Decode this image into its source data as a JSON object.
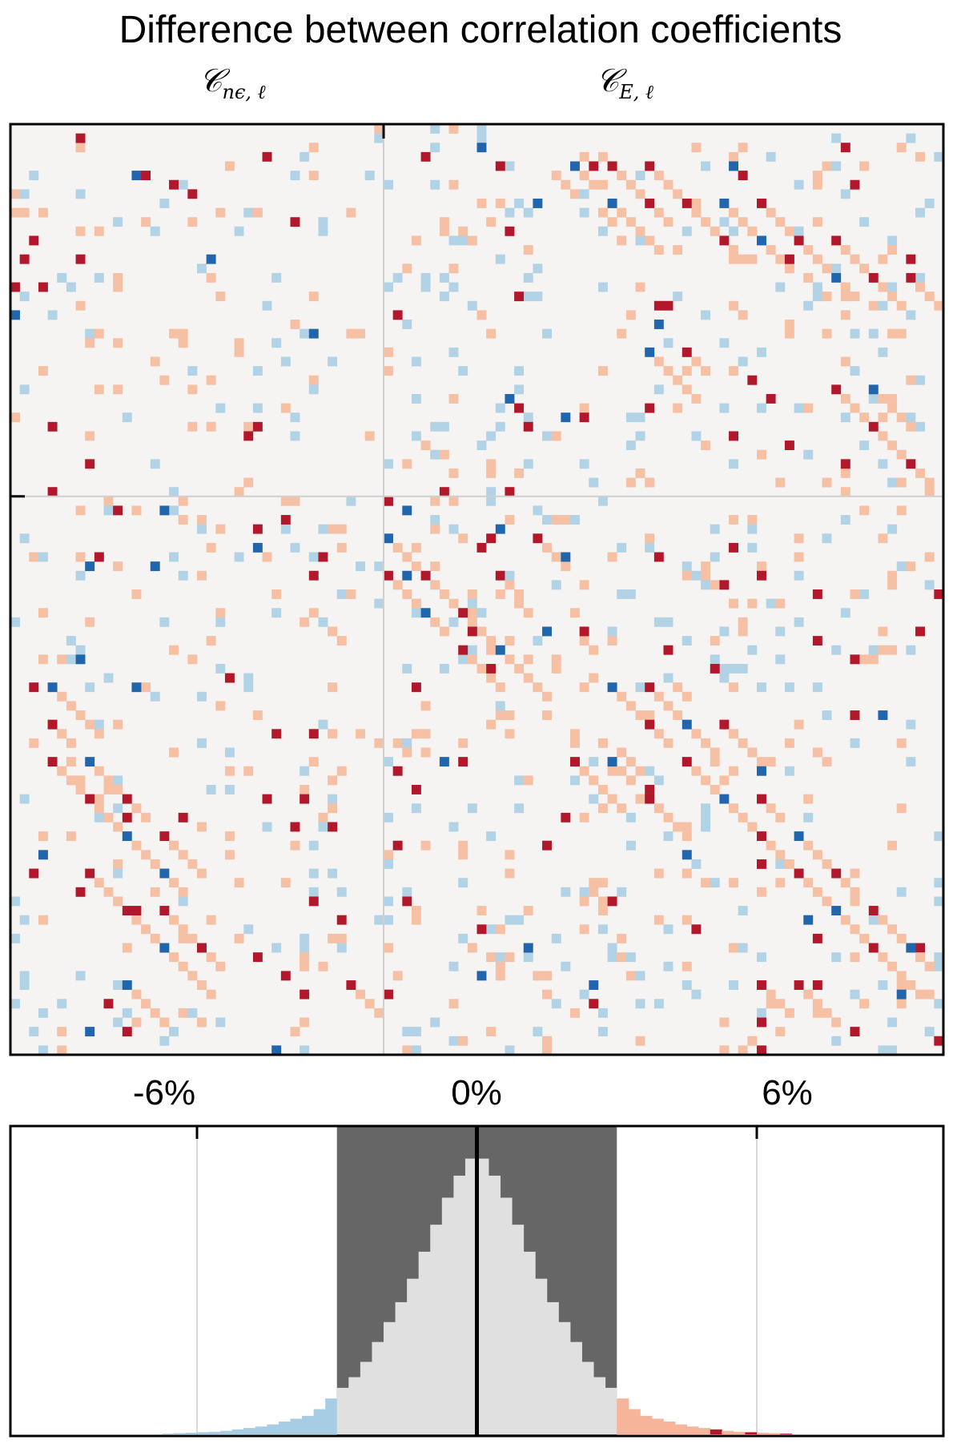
{
  "chart_data": [
    {
      "type": "heatmap",
      "title": "Difference between correlation coefficients",
      "column_labels": [
        {
          "symbol": "𝒞",
          "subscript": "nϵ, ℓ"
        },
        {
          "symbol": "𝒞",
          "subscript": "E, ℓ"
        }
      ],
      "grid_size": [
        100,
        100
      ],
      "blocks": [
        "C_nε,ℓ",
        "C_E,ℓ"
      ],
      "colormap": {
        "strong_negative": "#2166ac",
        "negative": "#b2d3e6",
        "neutral": "#f6f3f3",
        "positive": "#f6c0a4",
        "strong_positive": "#b2182b"
      },
      "structure": "sparse cells with diagonal stripe patterns; densest in upper-right, lower-left and lower-right blocks",
      "grid": "block dividers only"
    },
    {
      "type": "bar",
      "subtype": "histogram",
      "xlabel": "",
      "ylabel": "",
      "tick_labels": [
        "-6%",
        "0%",
        "6%"
      ],
      "xlim": [
        -10,
        10
      ],
      "bin_width": 0.25,
      "shaded_band": [
        -3,
        3
      ],
      "band_color": "#666666",
      "bar_color": "#e0e0e0",
      "negative_tail_color": "#a6cde3",
      "positive_tail_color": "#f6b59a",
      "strong_tail_color": "#b2182b",
      "distribution": "approximately symmetric about 0% with heavy tails; peak at 0",
      "values_sample": [
        {
          "x": -5.5,
          "y": 0.01
        },
        {
          "x": -4.5,
          "y": 0.03
        },
        {
          "x": -3.5,
          "y": 0.07
        },
        {
          "x": -2.5,
          "y": 0.22
        },
        {
          "x": -1.5,
          "y": 0.5
        },
        {
          "x": -0.5,
          "y": 0.88
        },
        {
          "x": 0.0,
          "y": 1.0
        },
        {
          "x": 0.5,
          "y": 0.88
        },
        {
          "x": 1.5,
          "y": 0.5
        },
        {
          "x": 2.5,
          "y": 0.22
        },
        {
          "x": 3.5,
          "y": 0.07
        },
        {
          "x": 4.5,
          "y": 0.03
        },
        {
          "x": 5.5,
          "y": 0.01
        }
      ]
    }
  ]
}
